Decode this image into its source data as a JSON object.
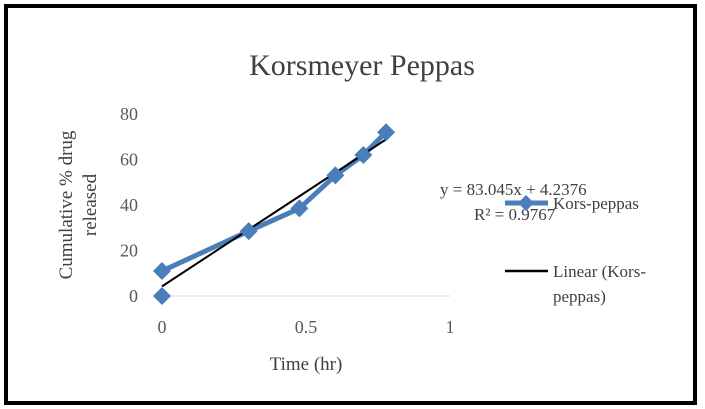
{
  "chart_data": {
    "type": "scatter",
    "title": "Korsmeyer  Peppas",
    "xlabel": "Time (hr)",
    "ylabel_lines": [
      "Cumulative % drug",
      "released"
    ],
    "xlim": [
      0,
      1
    ],
    "ylim": [
      0,
      80
    ],
    "xticks": [
      0,
      0.5,
      1
    ],
    "xtick_labels": [
      "0",
      "0.5",
      "1"
    ],
    "yticks": [
      0,
      20,
      40,
      60,
      80
    ],
    "ytick_labels": [
      "0",
      "20",
      "40",
      "60",
      "80"
    ],
    "grid": false,
    "legend_position": "right",
    "series": [
      {
        "name": "Kors-peppas",
        "color": "#4a7ebb",
        "marker": "diamond",
        "x": [
          0,
          0.301,
          0.477,
          0.602,
          0.699,
          0.778
        ],
        "y": [
          11,
          28.5,
          38.5,
          53,
          62,
          72
        ]
      },
      {
        "name": "Linear (Kors-peppas)",
        "legend_lines": [
          "Linear (Kors-",
          "peppas)"
        ],
        "color": "#000000",
        "type": "trendline",
        "slope": 83.045,
        "intercept": 4.2376,
        "x_range": [
          0,
          0.778
        ]
      }
    ],
    "extra_points": [
      {
        "x": 0,
        "y": 0
      }
    ],
    "annotations": {
      "equation": "y = 83.045x + 4.2376",
      "r_squared": "R² = 0.9767"
    }
  }
}
